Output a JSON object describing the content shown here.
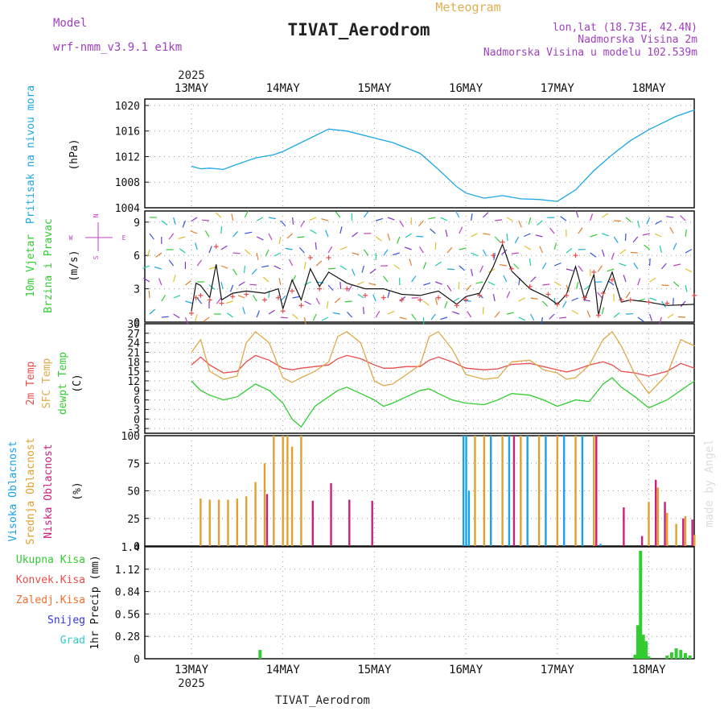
{
  "header": {
    "title": "TIVAT_Aerodrom",
    "subtitle": "Meteogram",
    "model_label": "Model",
    "model_name": "wrf-nmm_v3.9.1 e1km",
    "lonlat": "lon,lat (18.73E, 42.4N)",
    "elevation": "Nadmorska Visina 2m",
    "model_elevation": "Nadmorska Visina u modelu 102.539m",
    "year": "2025",
    "footer_title": "TIVAT_Aerodrom",
    "credit": "made by Angel"
  },
  "days": [
    "13MAY",
    "14MAY",
    "15MAY",
    "16MAY",
    "17MAY",
    "18MAY"
  ],
  "colors": {
    "pressure": "#1ea7e6",
    "temp2m": "#e84c4c",
    "sfc": "#e0a84a",
    "dew": "#33cc33",
    "high_cloud": "#19a3e6",
    "mid_cloud": "#e0a030",
    "low_cloud": "#cc1f7a",
    "total_precip": "#33cc33",
    "conv_precip": "#e84c4c",
    "ice": "#f07030",
    "snow": "#3333dd",
    "hail": "#33cccc",
    "wind_pink": "#c040c0"
  },
  "chart_data": [
    {
      "type": "line",
      "panel": "pressure",
      "ylabel_lines": [
        "Pritisak na nivou mora",
        "(hPa)"
      ],
      "ylim": [
        1004,
        1021
      ],
      "yticks": [
        1004,
        1008,
        1012,
        1016,
        1020
      ],
      "x_day": [
        0,
        0.1,
        0.2,
        0.35,
        0.5,
        0.7,
        0.9,
        1.0,
        1.2,
        1.5,
        1.7,
        2.0,
        2.2,
        2.5,
        2.7,
        2.9,
        3.0,
        3.2,
        3.4,
        3.6,
        3.8,
        4.0,
        4.2,
        4.4,
        4.6,
        4.8,
        5.0,
        5.3,
        5.5
      ],
      "values": [
        1010.5,
        1010.1,
        1010.2,
        1010.0,
        1010.8,
        1011.8,
        1012.3,
        1012.8,
        1014.2,
        1016.3,
        1016.0,
        1014.9,
        1014.2,
        1012.5,
        1010.0,
        1007.3,
        1006.3,
        1005.5,
        1005.9,
        1005.4,
        1005.3,
        1005.0,
        1006.8,
        1009.8,
        1012.3,
        1014.5,
        1016.2,
        1018.3,
        1019.3
      ],
      "series": [
        {
          "name": "Pritisak na nivou mora"
        }
      ]
    },
    {
      "type": "line",
      "panel": "wind",
      "ylabel_lines": [
        "10m Vjetar",
        "Brzina i Pravac",
        "(m/s)"
      ],
      "compass": [
        "N",
        "S",
        "E",
        "W"
      ],
      "ylim": [
        0,
        10
      ],
      "yticks": [
        0,
        3,
        6,
        9
      ],
      "x_day": [
        0,
        0.05,
        0.1,
        0.2,
        0.27,
        0.33,
        0.45,
        0.6,
        0.8,
        0.95,
        1.0,
        1.1,
        1.2,
        1.3,
        1.4,
        1.5,
        1.7,
        1.9,
        2.1,
        2.3,
        2.5,
        2.7,
        2.9,
        3.0,
        3.15,
        3.3,
        3.4,
        3.5,
        3.7,
        3.9,
        4.0,
        4.1,
        4.2,
        4.3,
        4.4,
        4.45,
        4.5,
        4.6,
        4.7,
        4.8,
        5.0,
        5.2,
        5.5
      ],
      "values": [
        1.0,
        3.5,
        3.3,
        2.2,
        5.2,
        2.0,
        2.6,
        2.8,
        2.6,
        3.0,
        1.2,
        3.8,
        2.0,
        4.8,
        3.2,
        4.5,
        3.5,
        3.0,
        3.0,
        2.5,
        2.4,
        2.8,
        1.6,
        2.3,
        2.6,
        5.0,
        7.0,
        4.6,
        3.0,
        2.2,
        1.6,
        2.5,
        5.0,
        2.0,
        4.3,
        0.6,
        2.5,
        4.5,
        1.8,
        2.0,
        1.8,
        1.5,
        1.6
      ],
      "gust_values": [
        0.8,
        2.2,
        2.4,
        2.0,
        6.8,
        1.7,
        2.3,
        2.5,
        2.0,
        2.2,
        1.0,
        2.8,
        1.5,
        5.8,
        3.0,
        5.8,
        3.0,
        2.4,
        2.2,
        2.0,
        2.0,
        2.2,
        1.5,
        2.0,
        2.4,
        6.0,
        7.2,
        4.8,
        3.2,
        2.5,
        1.6,
        2.4,
        6.0,
        2.2,
        4.5,
        0.6,
        2.6,
        3.8,
        2.0,
        2.0,
        1.8,
        1.7,
        2.4
      ]
    },
    {
      "type": "line",
      "panel": "temperature",
      "ylabel_lines": [
        "2m Temp",
        "SFC Temp",
        "dewpt Temp",
        "(C)"
      ],
      "ylim": [
        -4.5,
        30
      ],
      "yticks": [
        -3,
        0,
        3,
        6,
        9,
        12,
        15,
        18,
        21,
        24,
        27,
        30
      ],
      "x_day": [
        0,
        0.1,
        0.2,
        0.35,
        0.5,
        0.6,
        0.7,
        0.85,
        1.0,
        1.1,
        1.2,
        1.35,
        1.5,
        1.6,
        1.7,
        1.85,
        2.0,
        2.1,
        2.2,
        2.35,
        2.5,
        2.6,
        2.7,
        2.85,
        3.0,
        3.2,
        3.35,
        3.5,
        3.7,
        3.85,
        4.0,
        4.1,
        4.2,
        4.35,
        4.5,
        4.6,
        4.7,
        4.85,
        5.0,
        5.2,
        5.35,
        5.5
      ],
      "series": [
        {
          "name": "2m Temp",
          "values": [
            17,
            19.5,
            17,
            14.5,
            15,
            18,
            20,
            18.5,
            16,
            15.5,
            16,
            16.5,
            17,
            19,
            20,
            19,
            17,
            16,
            16,
            16.5,
            16.5,
            18.5,
            19.5,
            18,
            16,
            15.5,
            15.8,
            17.2,
            17.5,
            16.5,
            15.5,
            14.8,
            15.5,
            17,
            18,
            17,
            15,
            14.5,
            13.5,
            15,
            17.5,
            16
          ]
        },
        {
          "name": "SFC Temp",
          "values": [
            21,
            25,
            15,
            12.5,
            13.5,
            24,
            27.5,
            24,
            13,
            11.5,
            13,
            15,
            18,
            26,
            27.5,
            24,
            12,
            10.5,
            11,
            14,
            17,
            26,
            27.5,
            22,
            14,
            12.5,
            13,
            18,
            18.5,
            15.5,
            14.5,
            12.5,
            13,
            17,
            25,
            27.5,
            23,
            14,
            8,
            14,
            25,
            23
          ]
        },
        {
          "name": "dewpt Temp",
          "values": [
            12,
            9,
            7.5,
            6,
            7,
            9,
            11,
            9,
            5,
            0,
            -2.5,
            4,
            7,
            9,
            10,
            8,
            6,
            4,
            5,
            7,
            9,
            9.5,
            8,
            6,
            5,
            4.5,
            6,
            8,
            7.5,
            6,
            4,
            5,
            6,
            5.5,
            11,
            13,
            10,
            7,
            3.5,
            6,
            9,
            12
          ]
        }
      ]
    },
    {
      "type": "bar",
      "panel": "cloud",
      "ylabel_lines": [
        "Visoka Oblacnost",
        "Srednja Oblacnost",
        "Niska Oblacnost",
        "(%)"
      ],
      "ylim": [
        0,
        100
      ],
      "yticks": [
        0,
        25,
        50,
        75,
        100
      ],
      "series": [
        {
          "name": "Visoka Oblacnost",
          "x_day": [
            3.0,
            3.03,
            3.06,
            3.3,
            3.5,
            3.7,
            3.9,
            4.1,
            4.3,
            4.5
          ],
          "values": [
            100,
            100,
            50,
            100,
            100,
            100,
            100,
            100,
            100,
            2
          ]
        },
        {
          "name": "Srednja Oblacnost",
          "x_day": [
            0.1,
            0.2,
            0.3,
            0.4,
            0.5,
            0.6,
            0.7,
            0.8,
            0.9,
            1.0,
            1.05,
            1.1,
            1.2,
            3.1,
            3.2,
            3.4,
            3.6,
            3.8,
            4.0,
            4.2,
            4.4,
            5.0,
            5.1,
            5.2,
            5.3,
            5.4,
            5.5
          ],
          "values": [
            43,
            42,
            42,
            42,
            43,
            45,
            58,
            75,
            100,
            100,
            100,
            90,
            100,
            100,
            100,
            100,
            100,
            100,
            100,
            100,
            100,
            40,
            53,
            30,
            20,
            27,
            10
          ]
        },
        {
          "name": "Niska Oblacnost",
          "x_day": [
            0.8,
            1.3,
            1.5,
            1.7,
            1.95,
            3.5,
            4.4,
            4.7,
            4.9,
            5.05,
            5.15,
            5.35,
            5.45
          ],
          "values": [
            47,
            41,
            57,
            42,
            41,
            100,
            100,
            35,
            9,
            60,
            40,
            25,
            24
          ]
        }
      ]
    },
    {
      "type": "bar",
      "panel": "precip",
      "ylabel_lines": [
        "1hr Precip (mm)"
      ],
      "legend": [
        "Ukupna Kisa",
        "Konvek.Kisa",
        "Zaledj.Kisa",
        "Snijeg",
        "Grad"
      ],
      "ylim": [
        0,
        1.4
      ],
      "yticks": [
        0,
        0.28,
        0.56,
        0.84,
        1.12,
        1.4
      ],
      "x_day": [
        0.75,
        4.85,
        4.88,
        4.91,
        4.94,
        4.97,
        5.0,
        5.2,
        5.25,
        5.3,
        5.35,
        5.4,
        5.45
      ],
      "values": [
        0.11,
        0.05,
        0.42,
        1.35,
        0.3,
        0.22,
        0.03,
        0.04,
        0.08,
        0.13,
        0.11,
        0.07,
        0.04
      ]
    }
  ]
}
